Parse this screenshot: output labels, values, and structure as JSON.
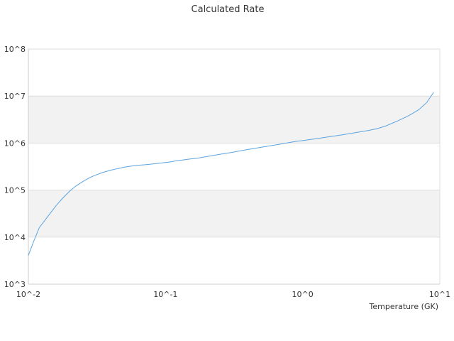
{
  "chart_data": {
    "type": "line",
    "title": "Calculated Rate",
    "xlabel": "Temperature (GK)",
    "ylabel": "",
    "x_scale": "log",
    "y_scale": "log",
    "xlim": [
      0.01,
      10
    ],
    "ylim": [
      1000,
      100000000
    ],
    "x_ticks": [
      {
        "value": 0.01,
        "label": "10^-2"
      },
      {
        "value": 0.1,
        "label": "10^-1"
      },
      {
        "value": 1,
        "label": "10^0"
      },
      {
        "value": 10,
        "label": "10^1"
      }
    ],
    "y_ticks": [
      {
        "value": 1000,
        "label": "10^3"
      },
      {
        "value": 10000,
        "label": "10^4"
      },
      {
        "value": 100000,
        "label": "10^5"
      },
      {
        "value": 1000000,
        "label": "10^6"
      },
      {
        "value": 10000000,
        "label": "10^7"
      },
      {
        "value": 100000000,
        "label": "10^8"
      }
    ],
    "grid": true,
    "band_color": "#f2f2f2",
    "series": [
      {
        "color": "#5ba3e0",
        "x": [
          0.01,
          0.011,
          0.012,
          0.014,
          0.016,
          0.018,
          0.02,
          0.022,
          0.025,
          0.028,
          0.03,
          0.035,
          0.04,
          0.045,
          0.05,
          0.06,
          0.07,
          0.08,
          0.09,
          0.1,
          0.11,
          0.12,
          0.13,
          0.15,
          0.17,
          0.18,
          0.2,
          0.25,
          0.3,
          0.35,
          0.4,
          0.5,
          0.6,
          0.7,
          0.8,
          0.9,
          1.0,
          1.25,
          1.5,
          1.75,
          2.0,
          2.5,
          3.0,
          3.5,
          4.0,
          5.0,
          6.0,
          7.0,
          8.0,
          9.0
        ],
        "y": [
          4100,
          8500,
          15800,
          28800,
          47700,
          70000,
          94800,
          120000,
          153000,
          184000,
          202000,
          239000,
          266000,
          288000,
          307000,
          334000,
          345000,
          358000,
          372000,
          386000,
          400000,
          420000,
          432000,
          458000,
          476000,
          491000,
          517000,
          579000,
          628000,
          681000,
          730000,
          816000,
          892000,
          960000,
          1030000,
          1090000,
          1130000,
          1240000,
          1340000,
          1430000,
          1520000,
          1690000,
          1850000,
          2030000,
          2290000,
          3010000,
          3900000,
          5100000,
          7200000,
          12000000
        ]
      }
    ]
  }
}
